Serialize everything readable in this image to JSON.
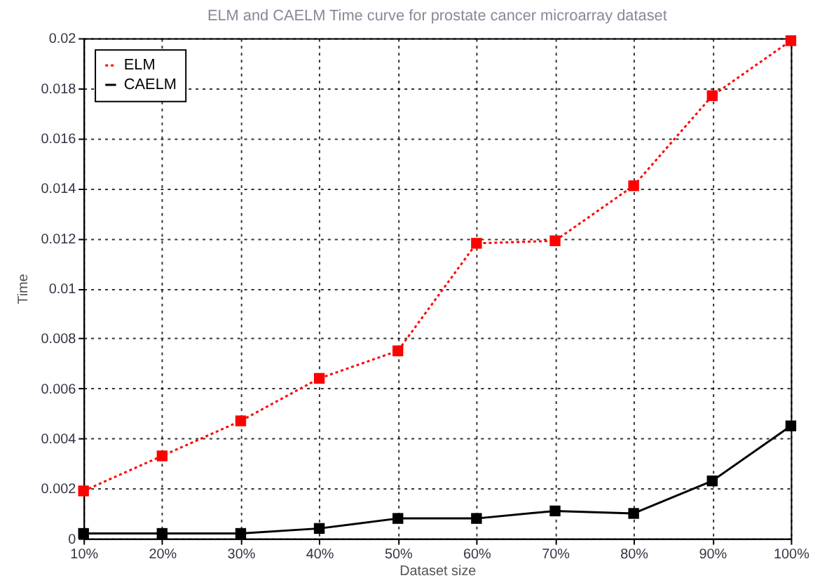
{
  "chart_data": {
    "type": "line",
    "title": "ELM and CAELM Time curve for prostate cancer microarray dataset",
    "xlabel": "Dataset size",
    "ylabel": "Time",
    "categories": [
      "10%",
      "20%",
      "30%",
      "40%",
      "50%",
      "60%",
      "70%",
      "80%",
      "90%",
      "100%"
    ],
    "series": [
      {
        "name": "ELM",
        "color": "#ff0000",
        "line_style": "dotted",
        "values": [
          0.0019,
          0.0033,
          0.0047,
          0.0064,
          0.0075,
          0.0118,
          0.0119,
          0.0141,
          0.0177,
          0.0199
        ]
      },
      {
        "name": "CAELM",
        "color": "#000000",
        "line_style": "solid",
        "values": [
          0.0002,
          0.0002,
          0.0002,
          0.0004,
          0.0008,
          0.0008,
          0.0011,
          0.001,
          0.0023,
          0.0045
        ]
      }
    ],
    "ylim": [
      0,
      0.02
    ],
    "yticks": [
      0,
      0.002,
      0.004,
      0.006,
      0.008,
      0.01,
      0.012,
      0.014,
      0.016,
      0.018,
      0.02
    ],
    "grid": true,
    "legend": "top left",
    "marker": "square"
  }
}
